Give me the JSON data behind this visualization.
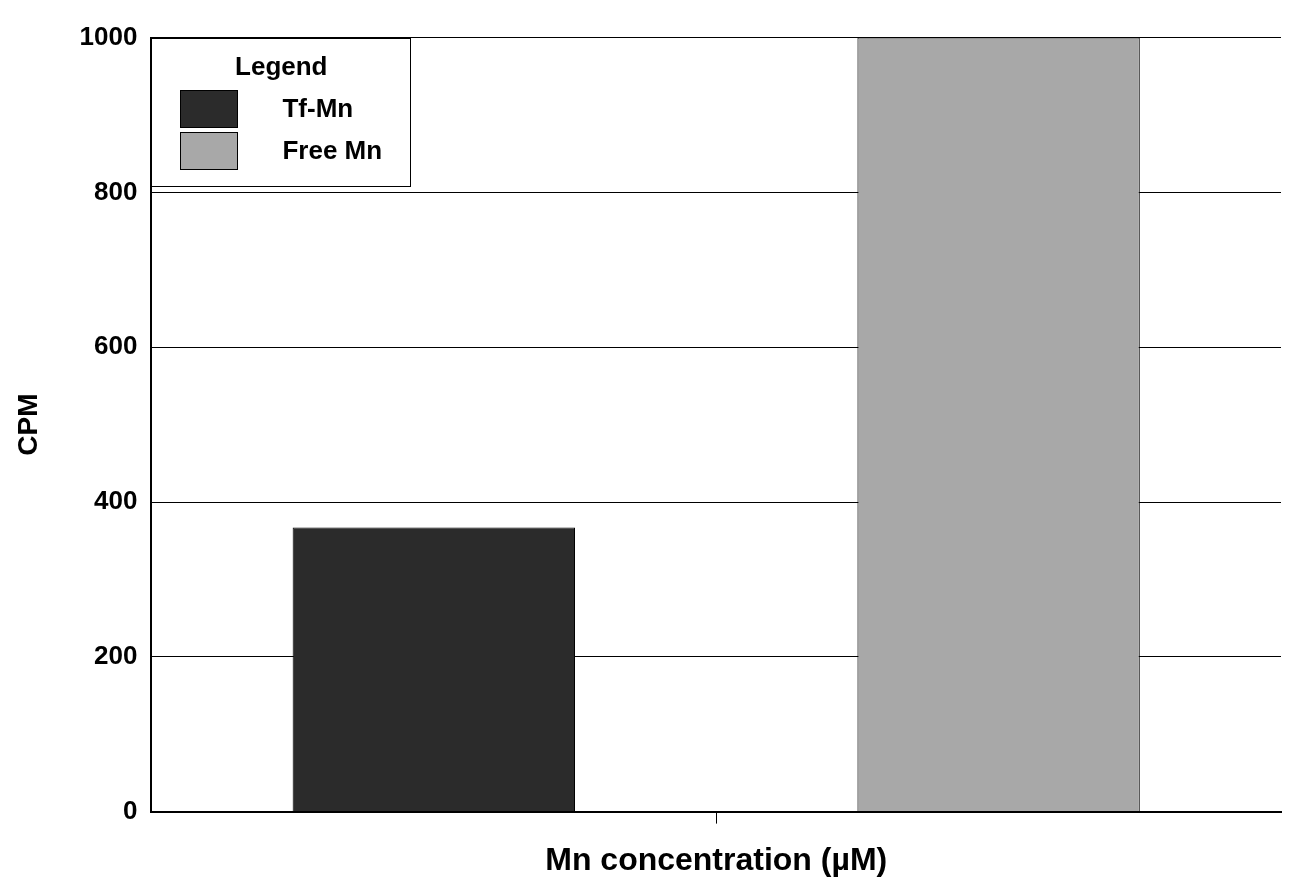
{
  "chart_data": {
    "type": "bar",
    "xlabel": "Mn concentration (µM)",
    "ylabel": "CPM",
    "legend_title": "Legend",
    "categories": [
      null
    ],
    "series": [
      {
        "name": "Tf-Mn",
        "color": "#2b2b2b",
        "values": [
          367
        ]
      },
      {
        "name": "Free Mn",
        "color": "#a8a8a8",
        "values": [
          1000
        ]
      }
    ],
    "ylim": [
      0,
      1000
    ],
    "yticks": [
      0,
      200,
      400,
      600,
      800,
      1000
    ],
    "grid": "y",
    "legend": "top left"
  }
}
